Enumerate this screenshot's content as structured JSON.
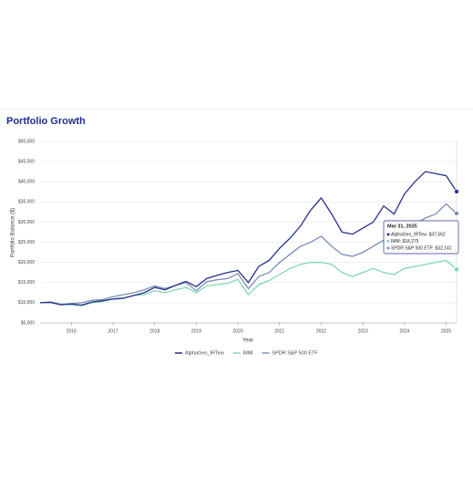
{
  "chart_data": {
    "type": "line",
    "title": "Portfolio Growth",
    "x_label": "Year",
    "y_label": "Portfolio Balance ($)",
    "x": [
      2015.25,
      2015.5,
      2015.75,
      2016,
      2016.25,
      2016.5,
      2016.75,
      2017,
      2017.25,
      2017.5,
      2017.75,
      2018,
      2018.25,
      2018.5,
      2018.75,
      2019,
      2019.25,
      2019.5,
      2019.75,
      2020,
      2020.25,
      2020.5,
      2020.75,
      2021,
      2021.25,
      2021.5,
      2021.75,
      2022,
      2022.25,
      2022.5,
      2022.75,
      2023,
      2023.25,
      2023.5,
      2023.75,
      2024,
      2024.25,
      2024.5,
      2024.75,
      2025,
      2025.25
    ],
    "xlim": [
      2015.25,
      2025.25
    ],
    "xticks": [
      2016,
      2017,
      2018,
      2019,
      2020,
      2021,
      2022,
      2023,
      2024,
      2025
    ],
    "ylim": [
      5000,
      50000
    ],
    "yticks": [
      {
        "value": 5000,
        "label": "$5,000"
      },
      {
        "value": 10000,
        "label": "$10,000"
      },
      {
        "value": 15000,
        "label": "$15,000"
      },
      {
        "value": 20000,
        "label": "$20,000"
      },
      {
        "value": 25000,
        "label": "$25,000"
      },
      {
        "value": 30000,
        "label": "$30,000"
      },
      {
        "value": 35000,
        "label": "$35,000"
      },
      {
        "value": 40000,
        "label": "$40,000"
      },
      {
        "value": 45000,
        "label": "$45,000"
      },
      {
        "value": 50000,
        "label": "$50,000"
      }
    ],
    "grid": true,
    "series": [
      {
        "name": "AlphaGeo_IRTew",
        "color": "#26318f",
        "values": [
          10000,
          10100,
          9500,
          9700,
          9400,
          10200,
          10500,
          10900,
          11100,
          11800,
          12500,
          13800,
          13200,
          14300,
          15300,
          14000,
          16000,
          16800,
          17500,
          18000,
          15000,
          19000,
          20500,
          23500,
          26000,
          29000,
          33000,
          36000,
          32000,
          27500,
          27000,
          28500,
          30000,
          34000,
          32000,
          37000,
          40000,
          42500,
          42000,
          41500,
          37562
        ]
      },
      {
        "name": "IMM",
        "color": "#7fd8b0",
        "values": [
          10000,
          10000,
          9700,
          9500,
          9300,
          10000,
          10300,
          11000,
          11200,
          11800,
          12000,
          13000,
          12500,
          13200,
          13800,
          12500,
          14200,
          14500,
          14800,
          15800,
          12000,
          14500,
          15500,
          17000,
          18500,
          19500,
          20000,
          20000,
          19500,
          17500,
          16500,
          17500,
          18500,
          17500,
          17000,
          18500,
          19000,
          19500,
          20000,
          20500,
          18275
        ]
      },
      {
        "name": "SPDR S&P 500 ETF",
        "color": "#7d8db5",
        "values": [
          10000,
          10200,
          9600,
          9800,
          10000,
          10600,
          10800,
          11500,
          12000,
          12500,
          13200,
          14200,
          13500,
          14300,
          15000,
          13000,
          15200,
          15700,
          16000,
          17200,
          13500,
          16500,
          17500,
          20000,
          22000,
          24000,
          25000,
          26500,
          24000,
          22000,
          21500,
          22500,
          24000,
          25500,
          24500,
          27500,
          29500,
          31000,
          32000,
          34500,
          32141
        ]
      }
    ],
    "tooltip": {
      "title": "Mar 31, 2025",
      "entries": [
        "AlphaGeo_IRTew: $37,562",
        "IMM: $18,275",
        "SPDR S&P 500 ETF: $32,141"
      ]
    }
  }
}
